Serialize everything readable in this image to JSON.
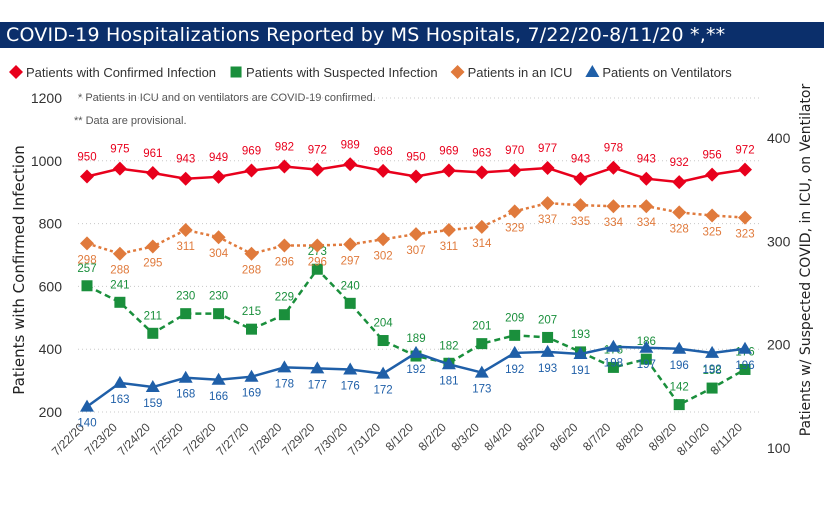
{
  "title": "COVID-19 Hospitalizations Reported by MS Hospitals, 7/22/20-8/11/20 *,**",
  "notes": [
    "* Patients in ICU and on ventilators are COVID-19 confirmed.",
    "** Data are provisional."
  ],
  "chart_data": {
    "type": "line",
    "title": "COVID-19 Hospitalizations Reported by MS Hospitals, 7/22/20-8/11/20 *,**",
    "xlabel": "",
    "ylabel": "Patients with Confirmed Infection",
    "y2label": "Patients w/ Suspected COVID, in ICU, on Ventilator",
    "ylim": [
      200,
      1200
    ],
    "y2lim": [
      100,
      400
    ],
    "yticks": [
      200,
      400,
      600,
      800,
      1000,
      1200
    ],
    "y2ticks": [
      100,
      200,
      300,
      400
    ],
    "grid": "horizontal dotted",
    "legend_position": "top",
    "categories": [
      "7/22/20",
      "7/23/20",
      "7/24/20",
      "7/25/20",
      "7/26/20",
      "7/27/20",
      "7/28/20",
      "7/29/20",
      "7/30/20",
      "7/31/20",
      "8/1/20",
      "8/2/20",
      "8/3/20",
      "8/4/20",
      "8/5/20",
      "8/6/20",
      "8/7/20",
      "8/8/20",
      "8/9/20",
      "8/10/20",
      "8/11/20"
    ],
    "series": [
      {
        "name": "Patients with Confirmed Infection",
        "axis": "left",
        "color": "#e8001c",
        "marker": "diamond",
        "dash": "solid",
        "values": [
          950,
          975,
          961,
          943,
          949,
          969,
          982,
          972,
          989,
          968,
          950,
          969,
          963,
          970,
          977,
          943,
          978,
          943,
          932,
          956,
          972
        ]
      },
      {
        "name": "Patients with Suspected Infection",
        "axis": "right",
        "color": "#1a8f3c",
        "marker": "square",
        "dash": "dashed",
        "values": [
          257,
          241,
          211,
          230,
          230,
          215,
          229,
          273,
          240,
          204,
          189,
          182,
          201,
          209,
          207,
          193,
          178,
          186,
          142,
          158,
          176
        ]
      },
      {
        "name": "Patients in an ICU",
        "axis": "right",
        "color": "#e07a3c",
        "marker": "diamond",
        "dash": "dotted",
        "values": [
          298,
          288,
          295,
          311,
          304,
          288,
          296,
          296,
          297,
          302,
          307,
          311,
          314,
          329,
          337,
          335,
          334,
          334,
          328,
          325,
          323
        ]
      },
      {
        "name": "Patients on Ventilators",
        "axis": "right",
        "color": "#1f5fa8",
        "marker": "triangle",
        "dash": "solid",
        "values": [
          140,
          163,
          159,
          168,
          166,
          169,
          178,
          177,
          176,
          172,
          192,
          181,
          173,
          192,
          193,
          191,
          198,
          197,
          196,
          192,
          196
        ]
      }
    ]
  },
  "colors": {
    "title_bg": "#0b2f6b",
    "grid": "#c8c8c8"
  }
}
